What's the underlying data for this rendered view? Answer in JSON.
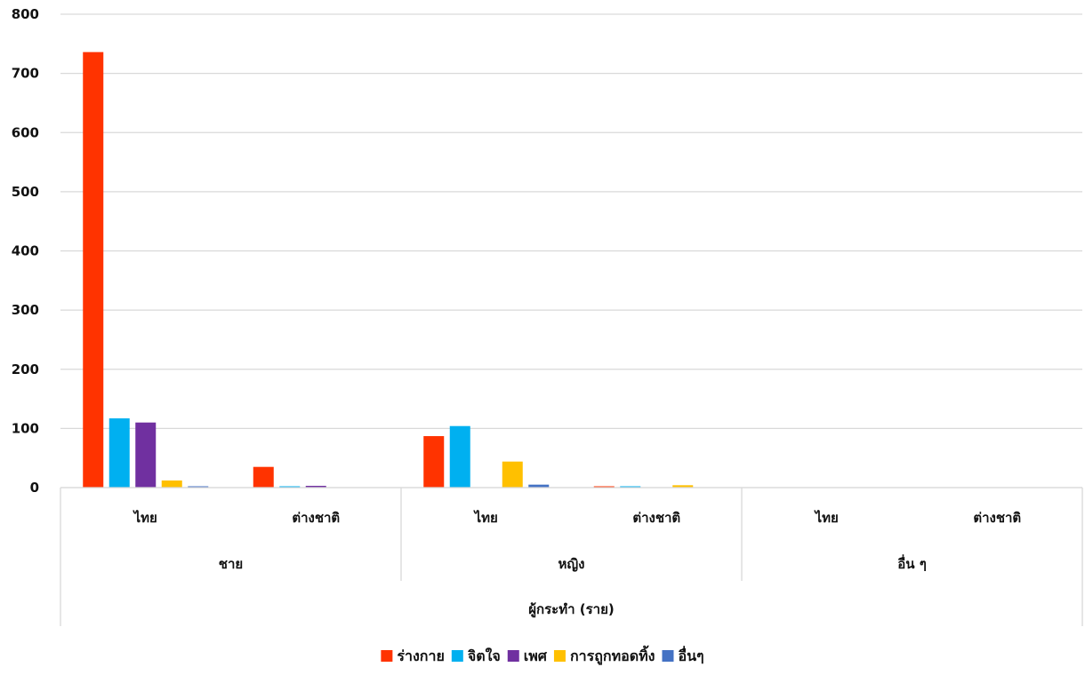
{
  "chart_data": {
    "type": "bar",
    "title": "",
    "ylabel": "",
    "xlabel": "ผู้กระทำ (ราย)",
    "ylim": [
      0,
      800
    ],
    "yticks": [
      0,
      100,
      200,
      300,
      400,
      500,
      600,
      700,
      800
    ],
    "grid": true,
    "legend_position": "bottom",
    "groups": [
      {
        "label": "ชาย",
        "categories": [
          "ไทย",
          "ต่างชาติ"
        ]
      },
      {
        "label": "หญิง",
        "categories": [
          "ไทย",
          "ต่างชาติ"
        ]
      },
      {
        "label": "อื่น ๆ",
        "categories": [
          "ไทย",
          "ต่างชาติ"
        ]
      }
    ],
    "categories": [
      "ไทย",
      "ต่างชาติ",
      "ไทย",
      "ต่างชาติ",
      "ไทย",
      "ต่างชาติ"
    ],
    "series": [
      {
        "name": "ร่างกาย",
        "color": "#FF3300",
        "values": [
          736,
          35,
          87,
          2,
          0,
          0
        ]
      },
      {
        "name": "จิตใจ",
        "color": "#00B0F0",
        "values": [
          117,
          1,
          104,
          2,
          0,
          0
        ]
      },
      {
        "name": "เพศ",
        "color": "#7030A0",
        "values": [
          110,
          3,
          0,
          0,
          0,
          0
        ]
      },
      {
        "name": "การถูกทอดทิ้ง",
        "color": "#FFC000",
        "values": [
          12,
          0,
          44,
          4,
          0,
          0
        ]
      },
      {
        "name": "อื่นๆ",
        "color": "#4472C4",
        "values": [
          2,
          0,
          5,
          0,
          0,
          0
        ]
      }
    ]
  }
}
